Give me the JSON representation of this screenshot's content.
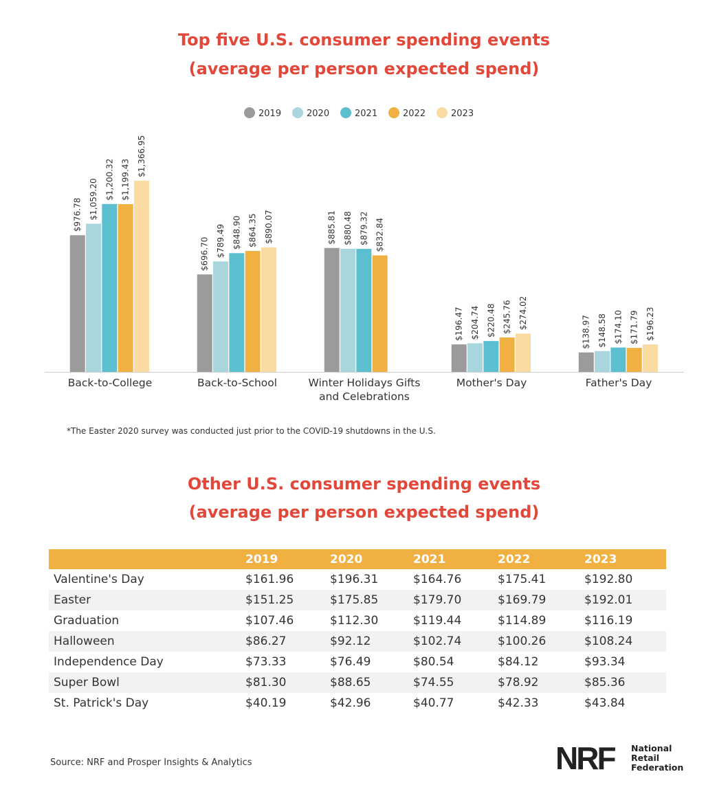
{
  "chart_data": {
    "type": "bar",
    "title": "Top five U.S. consumer spending events",
    "subtitle": "(average per person expected spend)",
    "categories": [
      "Back-to-College",
      "Back-to-School",
      "Winter Holidays Gifts and Celebrations",
      "Mother's Day",
      "Father's Day"
    ],
    "series": [
      {
        "name": "2019",
        "color": "#9b9b9b",
        "values": [
          976.78,
          696.7,
          885.81,
          196.47,
          138.97
        ],
        "value_labels": [
          "$976.78",
          "$696.70",
          "$885.81",
          "$196.47",
          "$138.97"
        ]
      },
      {
        "name": "2020",
        "color": "#a9d6dd",
        "values": [
          1059.2,
          789.49,
          880.48,
          204.74,
          148.58
        ],
        "value_labels": [
          "$1,059.20",
          "$789.49",
          "$880.48",
          "$204.74",
          "$148.58"
        ]
      },
      {
        "name": "2021",
        "color": "#5bbfcf",
        "values": [
          1200.32,
          848.9,
          879.32,
          220.48,
          174.1
        ],
        "value_labels": [
          "$1,200.32",
          "$848.90",
          "$879.32",
          "$220.48",
          "$174.10"
        ]
      },
      {
        "name": "2022",
        "color": "#f0b042",
        "values": [
          1199.43,
          864.35,
          832.84,
          245.76,
          171.79
        ],
        "value_labels": [
          "$1,199.43",
          "$864.35",
          "$832.84",
          "$245.76",
          "$171.79"
        ]
      },
      {
        "name": "2023",
        "color": "#fadba2",
        "values": [
          1366.95,
          890.07,
          null,
          274.02,
          196.23
        ],
        "value_labels": [
          "$1,366.95",
          "$890.07",
          null,
          "$274.02",
          "$196.23"
        ]
      }
    ],
    "footnote": "*The Easter 2020 survey was conducted just prior to the COVID-19 shutdowns in the U.S."
  },
  "table": {
    "title": "Other U.S. consumer spending events",
    "subtitle": "(average per person expected spend)",
    "columns": [
      "2019",
      "2020",
      "2021",
      "2022",
      "2023"
    ],
    "rows": [
      [
        "Valentine's Day",
        "$161.96",
        "$196.31",
        "$164.76",
        "$175.41",
        "$192.80"
      ],
      [
        "Easter",
        "$151.25",
        "$175.85",
        "$179.70",
        "$169.79",
        "$192.01"
      ],
      [
        "Graduation",
        "$107.46",
        "$112.30",
        "$119.44",
        "$114.89",
        "$116.19"
      ],
      [
        "Halloween",
        "$86.27",
        "$92.12",
        "$102.74",
        "$100.26",
        "$108.24"
      ],
      [
        "Independence Day",
        "$73.33",
        "$76.49",
        "$80.54",
        "$84.12",
        "$93.34"
      ],
      [
        "Super Bowl",
        "$81.30",
        "$88.65",
        "$74.55",
        "$78.92",
        "$85.36"
      ],
      [
        "St. Patrick's Day",
        "$40.19",
        "$42.96",
        "$40.77",
        "$42.33",
        "$43.84"
      ]
    ]
  },
  "footer": {
    "source": "Source: NRF and Prosper Insights & Analytics",
    "logo": "NRF",
    "logo_text": "National Retail Federation"
  }
}
